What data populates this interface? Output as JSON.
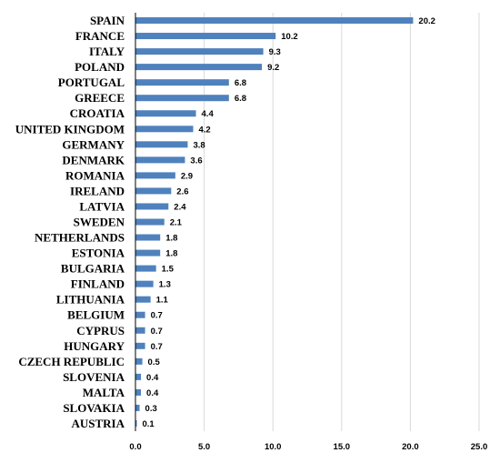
{
  "chart_data": {
    "type": "bar",
    "orientation": "horizontal",
    "categories": [
      "SPAIN",
      "FRANCE",
      "ITALY",
      "POLAND",
      "PORTUGAL",
      "GREECE",
      "CROATIA",
      "UNITED KINGDOM",
      "GERMANY",
      "DENMARK",
      "ROMANIA",
      "IRELAND",
      "LATVIA",
      "SWEDEN",
      "NETHERLANDS",
      "ESTONIA",
      "BULGARIA",
      "FINLAND",
      "LITHUANIA",
      "BELGIUM",
      "CYPRUS",
      "HUNGARY",
      "CZECH REPUBLIC",
      "SLOVENIA",
      "MALTA",
      "SLOVAKIA",
      "AUSTRIA"
    ],
    "values": [
      20.2,
      10.2,
      9.3,
      9.2,
      6.8,
      6.8,
      4.4,
      4.2,
      3.8,
      3.6,
      2.9,
      2.6,
      2.4,
      2.1,
      1.8,
      1.8,
      1.5,
      1.3,
      1.1,
      0.7,
      0.7,
      0.7,
      0.5,
      0.4,
      0.4,
      0.3,
      0.1
    ],
    "value_labels": [
      "20.2",
      "10.2",
      "9.3",
      "9.2",
      "6.8",
      "6.8",
      "4.4",
      "4.2",
      "3.8",
      "3.6",
      "2.9",
      "2.6",
      "2.4",
      "2.1",
      "1.8",
      "1.8",
      "1.5",
      "1.3",
      "1.1",
      "0.7",
      "0.7",
      "0.7",
      "0.5",
      "0.4",
      "0.4",
      "0.3",
      "0.1"
    ],
    "xlim": [
      0,
      25
    ],
    "x_ticks": [
      0,
      5,
      10,
      15,
      20,
      25
    ],
    "x_tick_labels": [
      "0.0",
      "5.0",
      "10.0",
      "15.0",
      "20.0",
      "25.0"
    ],
    "title": "",
    "xlabel": "",
    "ylabel": "",
    "grid": "vertical",
    "bar_color": "#4f81bd",
    "grid_color": "#d9d9d9"
  }
}
